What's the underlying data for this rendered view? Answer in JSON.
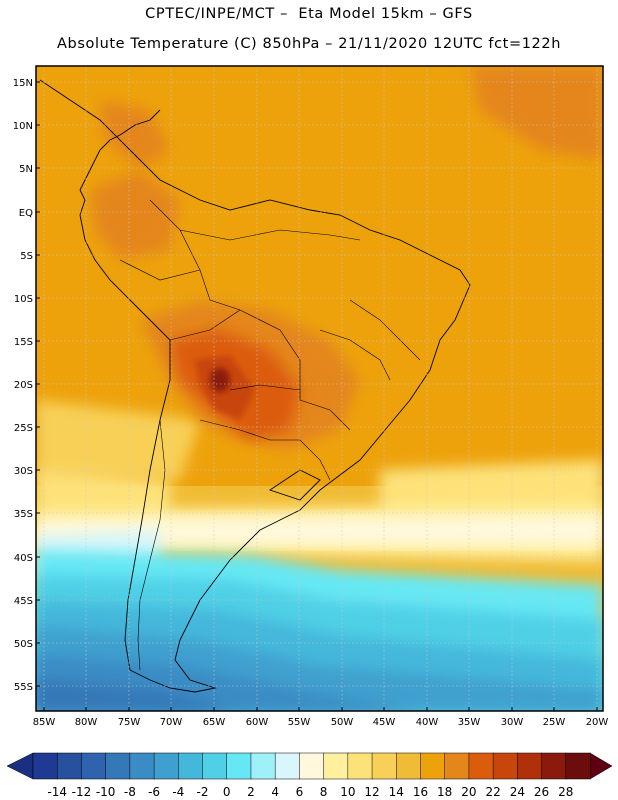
{
  "header": {
    "line1": "CPTEC/INPE/MCT –  Eta Model 15km – GFS",
    "line2": "Absolute Temperature (C) 850hPa – 21/11/2020 12UTC fct=122h"
  },
  "map": {
    "lat_labels": [
      "15N",
      "10N",
      "5N",
      "EQ",
      "5S",
      "10S",
      "15S",
      "20S",
      "25S",
      "30S",
      "35S",
      "40S",
      "45S",
      "50S",
      "55S"
    ],
    "lon_labels": [
      "85W",
      "80W",
      "75W",
      "70W",
      "65W",
      "60W",
      "55W",
      "50W",
      "45W",
      "40W",
      "35W",
      "30W",
      "25W",
      "20W"
    ],
    "colors": {
      "land_line": "#000000",
      "grid": "#c8c8c8"
    }
  },
  "colorbar": {
    "ticks": [
      "-14",
      "-12",
      "-10",
      "-8",
      "-6",
      "-4",
      "-2",
      "0",
      "2",
      "4",
      "6",
      "8",
      "10",
      "12",
      "14",
      "16",
      "18",
      "20",
      "22",
      "24",
      "26",
      "28"
    ],
    "colors": [
      "#1f3a93",
      "#27509f",
      "#2e64ad",
      "#3578b8",
      "#3a8cc4",
      "#3fa0cf",
      "#44b8db",
      "#4fd0e6",
      "#66e8f4",
      "#9ff0f8",
      "#d8f6fb",
      "#fff8dc",
      "#fff0a0",
      "#fde27a",
      "#f8d057",
      "#f1bc35",
      "#eda20c",
      "#e4861a",
      "#dc5c0e",
      "#c8450b",
      "#b0300a",
      "#8a1a0b",
      "#6b0d0d"
    ],
    "low_arrow": "#1a2f80",
    "high_arrow": "#5e0011"
  }
}
